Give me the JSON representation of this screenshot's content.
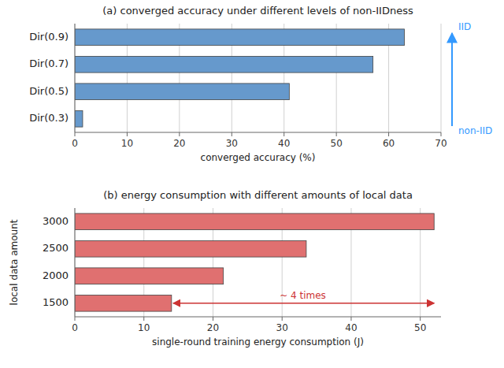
{
  "chart_data": [
    {
      "type": "bar",
      "orientation": "horizontal",
      "title": "(a) converged accuracy under different levels of non-IIDness",
      "categories": [
        "Dir(0.9)",
        "Dir(0.7)",
        "Dir(0.5)",
        "Dir(0.3)"
      ],
      "values": [
        63,
        57,
        41,
        1.5
      ],
      "color": "#6699CC",
      "xlabel": "converged accuracy (%)",
      "xlim": [
        0,
        70
      ],
      "xticks": [
        0,
        10,
        20,
        30,
        40,
        50,
        60,
        70
      ],
      "grid": true,
      "annotations": [
        {
          "text": "IID",
          "color": "#3399FF"
        },
        {
          "text": "non-IID",
          "color": "#3399FF"
        }
      ]
    },
    {
      "type": "bar",
      "orientation": "horizontal",
      "title": "(b) energy consumption with different amounts of local data",
      "categories": [
        "3000",
        "2500",
        "2000",
        "1500"
      ],
      "values": [
        52,
        33.5,
        21.5,
        14
      ],
      "color": "#E07070",
      "xlabel": "single-round training energy consumption (J)",
      "ylabel": "local data amount",
      "xlim": [
        0,
        53
      ],
      "xticks": [
        0,
        10,
        20,
        30,
        40,
        50
      ],
      "grid": true,
      "annotations": [
        {
          "text": "~ 4 times",
          "color": "#CC3333"
        }
      ]
    }
  ]
}
